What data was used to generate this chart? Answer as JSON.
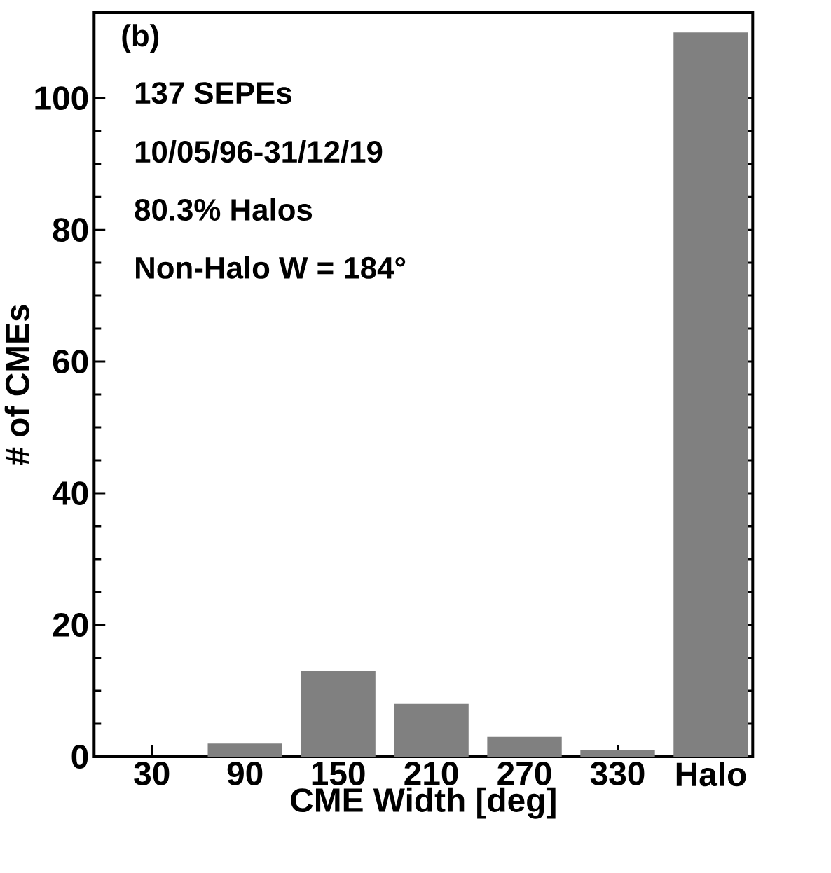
{
  "chart_data": {
    "type": "bar",
    "categories": [
      "30",
      "90",
      "150",
      "210",
      "270",
      "330",
      "Halo"
    ],
    "values": [
      0,
      2,
      13,
      8,
      3,
      1,
      110
    ],
    "color": "#808080",
    "xlabel": "CME Width [deg]",
    "ylabel": "# of CMEs",
    "ylim": [
      0,
      113
    ],
    "yticks": [
      0,
      20,
      40,
      60,
      80,
      100
    ],
    "annotations": [
      "(b)",
      "137 SEPEs",
      "10/05/96-31/12/19",
      "80.3% Halos",
      "Non-Halo W = 184°"
    ]
  }
}
